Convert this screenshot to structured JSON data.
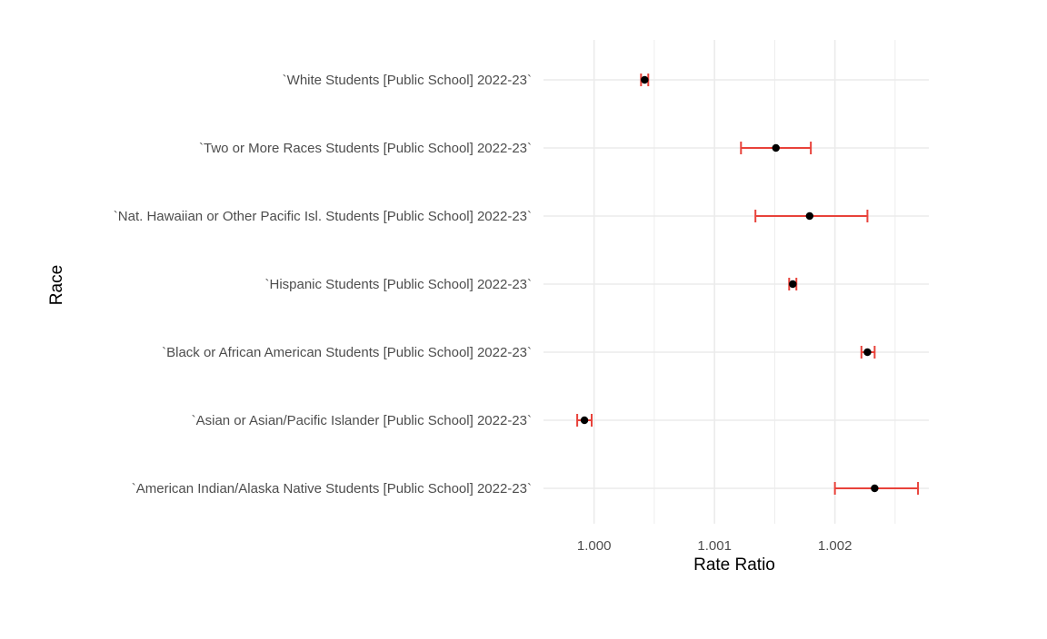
{
  "chart_data": {
    "type": "scatter",
    "subtype": "forest-plot-with-error-bars",
    "xlabel": "Rate Ratio",
    "ylabel": "Race",
    "xlim": [
      0.99958,
      1.00278
    ],
    "x_ticks": [
      1.0,
      1.001,
      1.002
    ],
    "x_tick_labels": [
      "1.000",
      "1.001",
      "1.002"
    ],
    "grid": true,
    "legend": "none",
    "point_color": "#000000",
    "errorbar_color": "#e8423a",
    "categories": [
      "`American Indian/Alaska Native Students [Public School] 2022-23`",
      "`Asian or Asian/Pacific Islander [Public School] 2022-23`",
      "`Black or African American Students [Public School] 2022-23`",
      "`Hispanic Students [Public School] 2022-23`",
      "`Nat. Hawaiian or Other Pacific Isl. Students [Public School] 2022-23`",
      "`Two or More Races Students [Public School] 2022-23`",
      "`White Students [Public School] 2022-23`"
    ],
    "estimates": [
      1.00233,
      0.99992,
      1.00227,
      1.00165,
      1.00179,
      1.00151,
      1.00042
    ],
    "lower": [
      1.002,
      0.99986,
      1.00222,
      1.00162,
      1.00134,
      1.00122,
      1.00039
    ],
    "upper": [
      1.00269,
      0.99998,
      1.00233,
      1.00168,
      1.00227,
      1.0018,
      1.00045
    ]
  }
}
